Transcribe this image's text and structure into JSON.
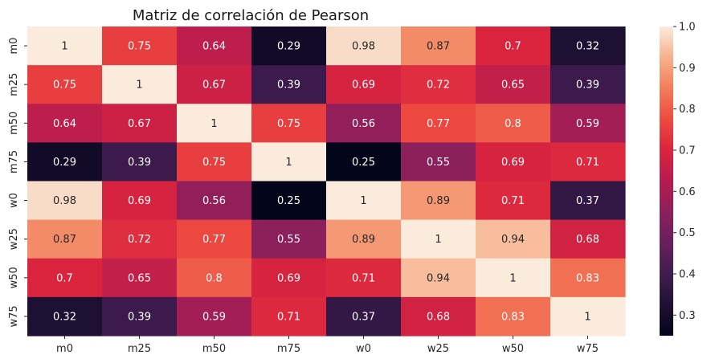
{
  "chart_data": {
    "type": "heatmap",
    "title": "Matriz de correlación de Pearson",
    "xlabel": "",
    "ylabel": "",
    "x_categories": [
      "m0",
      "m25",
      "m50",
      "m75",
      "w0",
      "w25",
      "w50",
      "w75"
    ],
    "y_categories": [
      "m0",
      "m25",
      "m50",
      "m75",
      "w0",
      "w25",
      "w50",
      "w75"
    ],
    "values": [
      [
        1,
        0.75,
        0.64,
        0.29,
        0.98,
        0.87,
        0.7,
        0.32
      ],
      [
        0.75,
        1,
        0.67,
        0.39,
        0.69,
        0.72,
        0.65,
        0.39
      ],
      [
        0.64,
        0.67,
        1,
        0.75,
        0.56,
        0.77,
        0.8,
        0.59
      ],
      [
        0.29,
        0.39,
        0.75,
        1,
        0.25,
        0.55,
        0.69,
        0.71
      ],
      [
        0.98,
        0.69,
        0.56,
        0.25,
        1,
        0.89,
        0.71,
        0.37
      ],
      [
        0.87,
        0.72,
        0.77,
        0.55,
        0.89,
        1,
        0.94,
        0.68
      ],
      [
        0.7,
        0.65,
        0.8,
        0.69,
        0.71,
        0.94,
        1,
        0.83
      ],
      [
        0.32,
        0.39,
        0.59,
        0.71,
        0.37,
        0.68,
        0.83,
        1
      ]
    ],
    "annotations": [
      [
        "1",
        "0.75",
        "0.64",
        "0.29",
        "0.98",
        "0.87",
        "0.7",
        "0.32"
      ],
      [
        "0.75",
        "1",
        "0.67",
        "0.39",
        "0.69",
        "0.72",
        "0.65",
        "0.39"
      ],
      [
        "0.64",
        "0.67",
        "1",
        "0.75",
        "0.56",
        "0.77",
        "0.8",
        "0.59"
      ],
      [
        "0.29",
        "0.39",
        "0.75",
        "1",
        "0.25",
        "0.55",
        "0.69",
        "0.71"
      ],
      [
        "0.98",
        "0.69",
        "0.56",
        "0.25",
        "1",
        "0.89",
        "0.71",
        "0.37"
      ],
      [
        "0.87",
        "0.72",
        "0.77",
        "0.55",
        "0.89",
        "1",
        "0.94",
        "0.68"
      ],
      [
        "0.7",
        "0.65",
        "0.8",
        "0.69",
        "0.71",
        "0.94",
        "1",
        "0.83"
      ],
      [
        "0.32",
        "0.39",
        "0.59",
        "0.71",
        "0.37",
        "0.68",
        "0.83",
        "1"
      ]
    ],
    "colormap": "rocket",
    "vmin": 0.25,
    "vmax": 1.0,
    "colorbar": {
      "ticks": [
        0.3,
        0.4,
        0.5,
        0.6,
        0.7,
        0.8,
        0.9,
        1.0
      ],
      "tick_labels": [
        "0.3",
        "0.4",
        "0.5",
        "0.6",
        "0.7",
        "0.8",
        "0.9",
        "1.0"
      ],
      "placement": "right"
    },
    "legend": "none",
    "grid": false
  }
}
